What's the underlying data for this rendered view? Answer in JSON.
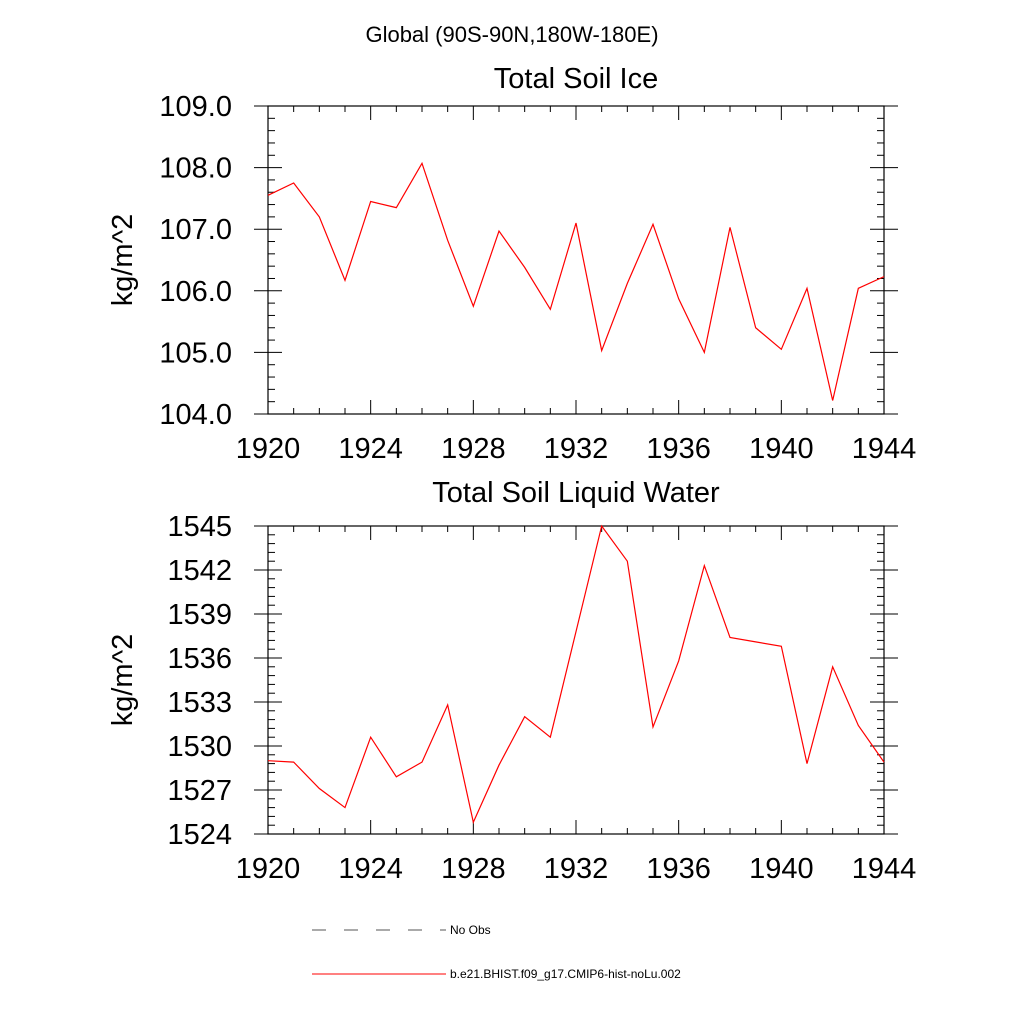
{
  "figure": {
    "suptitle": "Global (90S-90N,180W-180E)"
  },
  "chart_data": [
    {
      "type": "line",
      "title": "Total Soil Ice",
      "xlabel": "",
      "ylabel": "kg/m^2",
      "xlim": [
        1920,
        1944
      ],
      "ylim": [
        104.0,
        109.0
      ],
      "xticks": [
        1920,
        1924,
        1928,
        1932,
        1936,
        1940,
        1944
      ],
      "xtick_labels": [
        "1920",
        "1924",
        "1928",
        "1932",
        "1936",
        "1940",
        "1944"
      ],
      "yticks": [
        104.0,
        105.0,
        106.0,
        107.0,
        108.0,
        109.0
      ],
      "ytick_labels": [
        "104.0",
        "105.0",
        "106.0",
        "107.0",
        "108.0",
        "109.0"
      ],
      "grid": false,
      "series": [
        {
          "name": "b.e21.BHIST.f09_g17.CMIP6-hist-noLu.002",
          "color": "#ff0000",
          "x": [
            1920,
            1921,
            1922,
            1923,
            1924,
            1925,
            1926,
            1927,
            1928,
            1929,
            1930,
            1931,
            1932,
            1933,
            1934,
            1935,
            1936,
            1937,
            1938,
            1939,
            1940,
            1941,
            1942,
            1943,
            1944
          ],
          "values": [
            107.55,
            107.75,
            107.2,
            106.17,
            107.45,
            107.35,
            108.07,
            106.82,
            105.75,
            106.97,
            106.38,
            105.7,
            107.1,
            105.03,
            106.12,
            107.08,
            105.87,
            105.0,
            107.03,
            105.4,
            105.05,
            106.04,
            104.22,
            106.04,
            106.23
          ]
        }
      ]
    },
    {
      "type": "line",
      "title": "Total Soil Liquid Water",
      "xlabel": "",
      "ylabel": "kg/m^2",
      "xlim": [
        1920,
        1944
      ],
      "ylim": [
        1524,
        1545
      ],
      "xticks": [
        1920,
        1924,
        1928,
        1932,
        1936,
        1940,
        1944
      ],
      "xtick_labels": [
        "1920",
        "1924",
        "1928",
        "1932",
        "1936",
        "1940",
        "1944"
      ],
      "yticks": [
        1524,
        1527,
        1530,
        1533,
        1536,
        1539,
        1542,
        1545
      ],
      "ytick_labels": [
        "1524",
        "1527",
        "1530",
        "1533",
        "1536",
        "1539",
        "1542",
        "1545"
      ],
      "grid": false,
      "series": [
        {
          "name": "b.e21.BHIST.f09_g17.CMIP6-hist-noLu.002",
          "color": "#ff0000",
          "x": [
            1920,
            1921,
            1922,
            1923,
            1924,
            1925,
            1926,
            1927,
            1928,
            1929,
            1930,
            1931,
            1932,
            1933,
            1934,
            1935,
            1936,
            1937,
            1938,
            1939,
            1940,
            1941,
            1942,
            1943,
            1944
          ],
          "values": [
            1529.0,
            1528.9,
            1527.1,
            1525.8,
            1530.6,
            1527.9,
            1528.9,
            1532.8,
            1524.8,
            1528.7,
            1532.0,
            1530.6,
            1537.8,
            1545.0,
            1542.6,
            1531.3,
            1535.8,
            1542.3,
            1537.4,
            1537.1,
            1536.8,
            1528.8,
            1535.4,
            1531.4,
            1528.9
          ]
        }
      ]
    }
  ],
  "legend": {
    "placement": "bottom",
    "entries": [
      {
        "label": "No Obs",
        "style": "dashed",
        "color": "#555555"
      },
      {
        "label": "b.e21.BHIST.f09_g17.CMIP6-hist-noLu.002",
        "style": "solid",
        "color": "#ff0000"
      }
    ]
  }
}
